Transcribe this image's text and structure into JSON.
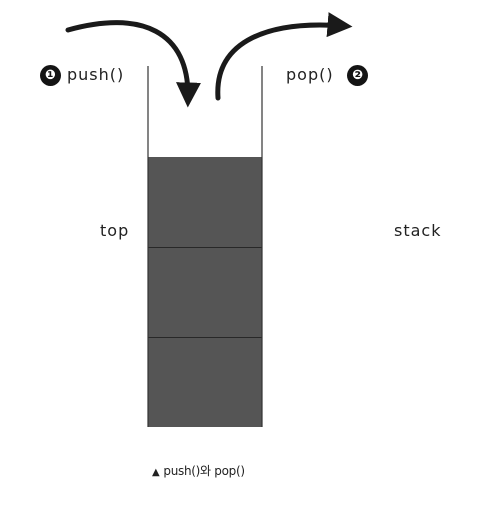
{
  "labels": {
    "push_step": "❶",
    "push": "push()",
    "pop": "pop()",
    "pop_step": "❷",
    "top": "top",
    "stack": "stack"
  },
  "caption": {
    "marker": "▲",
    "text": "push()와 pop()"
  },
  "stack": {
    "block_count": 3,
    "container_color": "#333333",
    "block_color": "#555555",
    "arrow_color": "#1a1a1a"
  }
}
